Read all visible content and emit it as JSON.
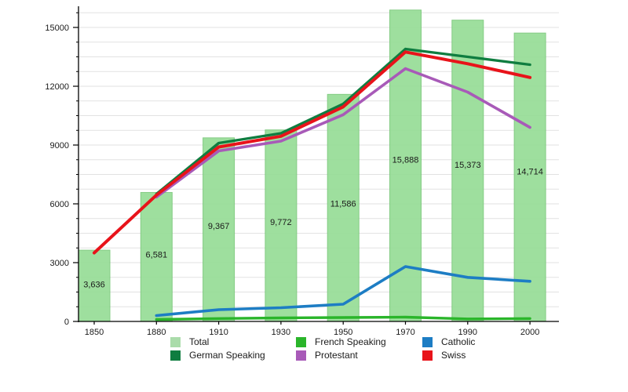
{
  "chart_data": {
    "type": "combo",
    "title": "",
    "xlabel": "",
    "ylabel": "",
    "categories": [
      "1850",
      "1880",
      "1910",
      "1930",
      "1950",
      "1970",
      "1990",
      "2000"
    ],
    "bars": {
      "name": "Total",
      "color": "#97dd97",
      "border_color": "#7cc97c",
      "values": [
        3636,
        6581,
        9367,
        9772,
        11586,
        15888,
        15373,
        14714
      ],
      "labels": [
        "3,636",
        "6,581",
        "9,367",
        "9,772",
        "11,586",
        "15,888",
        "15,373",
        "14,714"
      ]
    },
    "series": [
      {
        "name": "French Speaking",
        "color": "#2ab52a",
        "width": 3.4,
        "values": [
          null,
          100,
          150,
          180,
          200,
          220,
          130,
          150
        ]
      },
      {
        "name": "Catholic",
        "color": "#1d7dc4",
        "width": 3.6,
        "values": [
          null,
          300,
          600,
          700,
          880,
          2800,
          2250,
          2050
        ]
      },
      {
        "name": "Protestant",
        "color": "#a85ab8",
        "width": 3.6,
        "values": [
          null,
          6350,
          8700,
          9200,
          10550,
          12900,
          11700,
          9900
        ]
      },
      {
        "name": "German Speaking",
        "color": "#0f7d40",
        "width": 3.4,
        "values": [
          null,
          6500,
          9100,
          9600,
          11100,
          13900,
          13500,
          13100
        ]
      },
      {
        "name": "Swiss",
        "color": "#e8131a",
        "width": 4,
        "values": [
          3500,
          6450,
          8900,
          9450,
          10950,
          13750,
          13150,
          12450
        ]
      }
    ],
    "ylim": [
      0,
      16080
    ],
    "yticks": [
      0,
      3000,
      6000,
      9000,
      12000,
      15000
    ],
    "ytick_labels": [
      "0",
      "3000",
      "6000",
      "9000",
      "12000",
      "15000"
    ],
    "minor_tick_step": 750,
    "grid": "horizontal gridlines every 750, light gray",
    "legend_position": "bottom"
  },
  "legend": {
    "items": [
      {
        "label": "Total",
        "color": "#aadcaa"
      },
      {
        "label": "German Speaking",
        "color": "#0f7d40"
      },
      {
        "label": "French Speaking",
        "color": "#2ab52a"
      },
      {
        "label": "Protestant",
        "color": "#a85ab8"
      },
      {
        "label": "Catholic",
        "color": "#1d7dc4"
      },
      {
        "label": "Swiss",
        "color": "#e8131a"
      }
    ]
  }
}
